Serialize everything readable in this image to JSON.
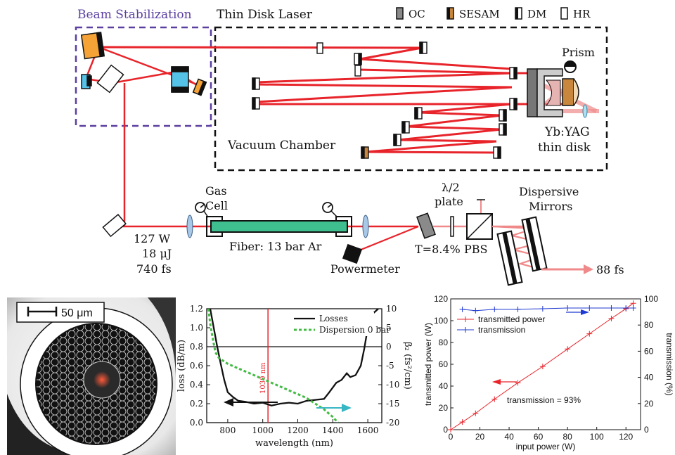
{
  "top": {
    "beam_stabilization": "Beam Stabilization",
    "thin_disk_laser": "Thin Disk Laser",
    "legend": {
      "oc": "OC",
      "sesam": "SESAM",
      "dm": "DM",
      "hr": "HR"
    },
    "prism": "Prism",
    "vacuum_chamber": "Vacuum Chamber",
    "ybyag_line1": "Yb:YAG",
    "ybyag_line2": "thin disk",
    "gas_line1": "Gas",
    "gas_line2": "Cell",
    "fiber": "Fiber: 13 bar Ar",
    "input_power": "127 W",
    "input_energy": "18 μJ",
    "input_duration": "740 fs",
    "halfwave_line1": "λ/2",
    "halfwave_line2": "plate",
    "transmission_label": "T=8.4%",
    "pbs": "PBS",
    "powermeter": "Powermeter",
    "dm_line1": "Dispersive",
    "dm_line2": "Mirrors",
    "output": "88 fs",
    "colors": {
      "beam": "#e8242b",
      "stab_box": "#5b3fa0",
      "fiber": "#3fbf8f",
      "oc": "#8a8a8a",
      "sesam": "#c8873c"
    }
  },
  "micro": {
    "scalebar": "50 μm"
  },
  "mid_chart": {
    "chart_data": {
      "type": "line",
      "xlabel": "wavelength (nm)",
      "ylabel_left": "loss (dB/m)",
      "ylabel_right": "β₂ (fs²/cm)",
      "xlim": [
        680,
        1680
      ],
      "ylim_left": [
        0.0,
        1.2
      ],
      "ylim_right": [
        -20,
        10
      ],
      "xticks": [
        "800",
        "1000",
        "1200",
        "1400",
        "1600"
      ],
      "yticks_left": [
        "0.0",
        "0.2",
        "0.4",
        "0.6",
        "0.8",
        "1.0",
        "1.2"
      ],
      "yticks_right": [
        "-20",
        "-15",
        "-10",
        "-5",
        "0",
        "5",
        "10"
      ],
      "marker_label": "1030 nm",
      "marker_x": 1030,
      "legend": [
        "Losses",
        "Dispersion 0 bar"
      ],
      "series": [
        {
          "name": "Losses",
          "x": [
            700,
            720,
            740,
            760,
            780,
            800,
            830,
            860,
            900,
            950,
            1000,
            1050,
            1100,
            1150,
            1200,
            1250,
            1300,
            1350,
            1380,
            1420,
            1450,
            1480,
            1500,
            1530,
            1560,
            1580,
            1600,
            1630,
            1660
          ],
          "y": [
            1.2,
            1.0,
            0.8,
            0.62,
            0.45,
            0.32,
            0.27,
            0.23,
            0.22,
            0.2,
            0.21,
            0.18,
            0.2,
            0.21,
            0.2,
            0.23,
            0.24,
            0.25,
            0.32,
            0.42,
            0.45,
            0.52,
            0.48,
            0.5,
            0.6,
            0.78,
            1.0,
            1.15,
            1.2
          ]
        },
        {
          "name": "Dispersion 0 bar",
          "x": [
            690,
            700,
            715,
            730,
            750,
            800,
            850,
            900,
            950,
            1000,
            1050,
            1100,
            1150,
            1200,
            1250,
            1300,
            1350,
            1400,
            1430
          ],
          "y": [
            10,
            6,
            2,
            -1.5,
            -3,
            -4.5,
            -5.5,
            -6.5,
            -7.5,
            -8.5,
            -9.5,
            -10.5,
            -11.5,
            -12.5,
            -13.5,
            -15,
            -16.5,
            -18.5,
            -20
          ]
        }
      ]
    }
  },
  "right_chart": {
    "chart_data": {
      "type": "line",
      "xlabel": "input power (W)",
      "ylabel_left": "transmitted power (W)",
      "ylabel_right": "transmission (%)",
      "xlim": [
        0,
        130
      ],
      "ylim_left": [
        0,
        120
      ],
      "ylim_right": [
        0,
        100
      ],
      "xticks": [
        "0",
        "20",
        "40",
        "60",
        "80",
        "100",
        "120"
      ],
      "yticks_left": [
        "0",
        "20",
        "40",
        "60",
        "80",
        "100",
        "120"
      ],
      "yticks_right": [
        "0",
        "20",
        "40",
        "60",
        "80",
        "100"
      ],
      "legend": [
        "transmitted power",
        "transmission"
      ],
      "annotation": "transmission = 93%",
      "colors": {
        "power": "#e8242b",
        "transmission": "#1f3ad1"
      },
      "series": [
        {
          "name": "transmitted power",
          "x": [
            0,
            8,
            17,
            30,
            46,
            63,
            80,
            95,
            110,
            120,
            125
          ],
          "y": [
            0,
            7,
            15,
            28,
            43,
            58,
            74,
            88,
            102,
            111,
            116
          ]
        },
        {
          "name": "transmission",
          "x": [
            8,
            17,
            30,
            46,
            63,
            80,
            95,
            110,
            120,
            125
          ],
          "y": [
            92,
            91,
            92,
            92,
            92.5,
            93,
            93,
            93,
            93,
            93
          ]
        }
      ]
    }
  }
}
